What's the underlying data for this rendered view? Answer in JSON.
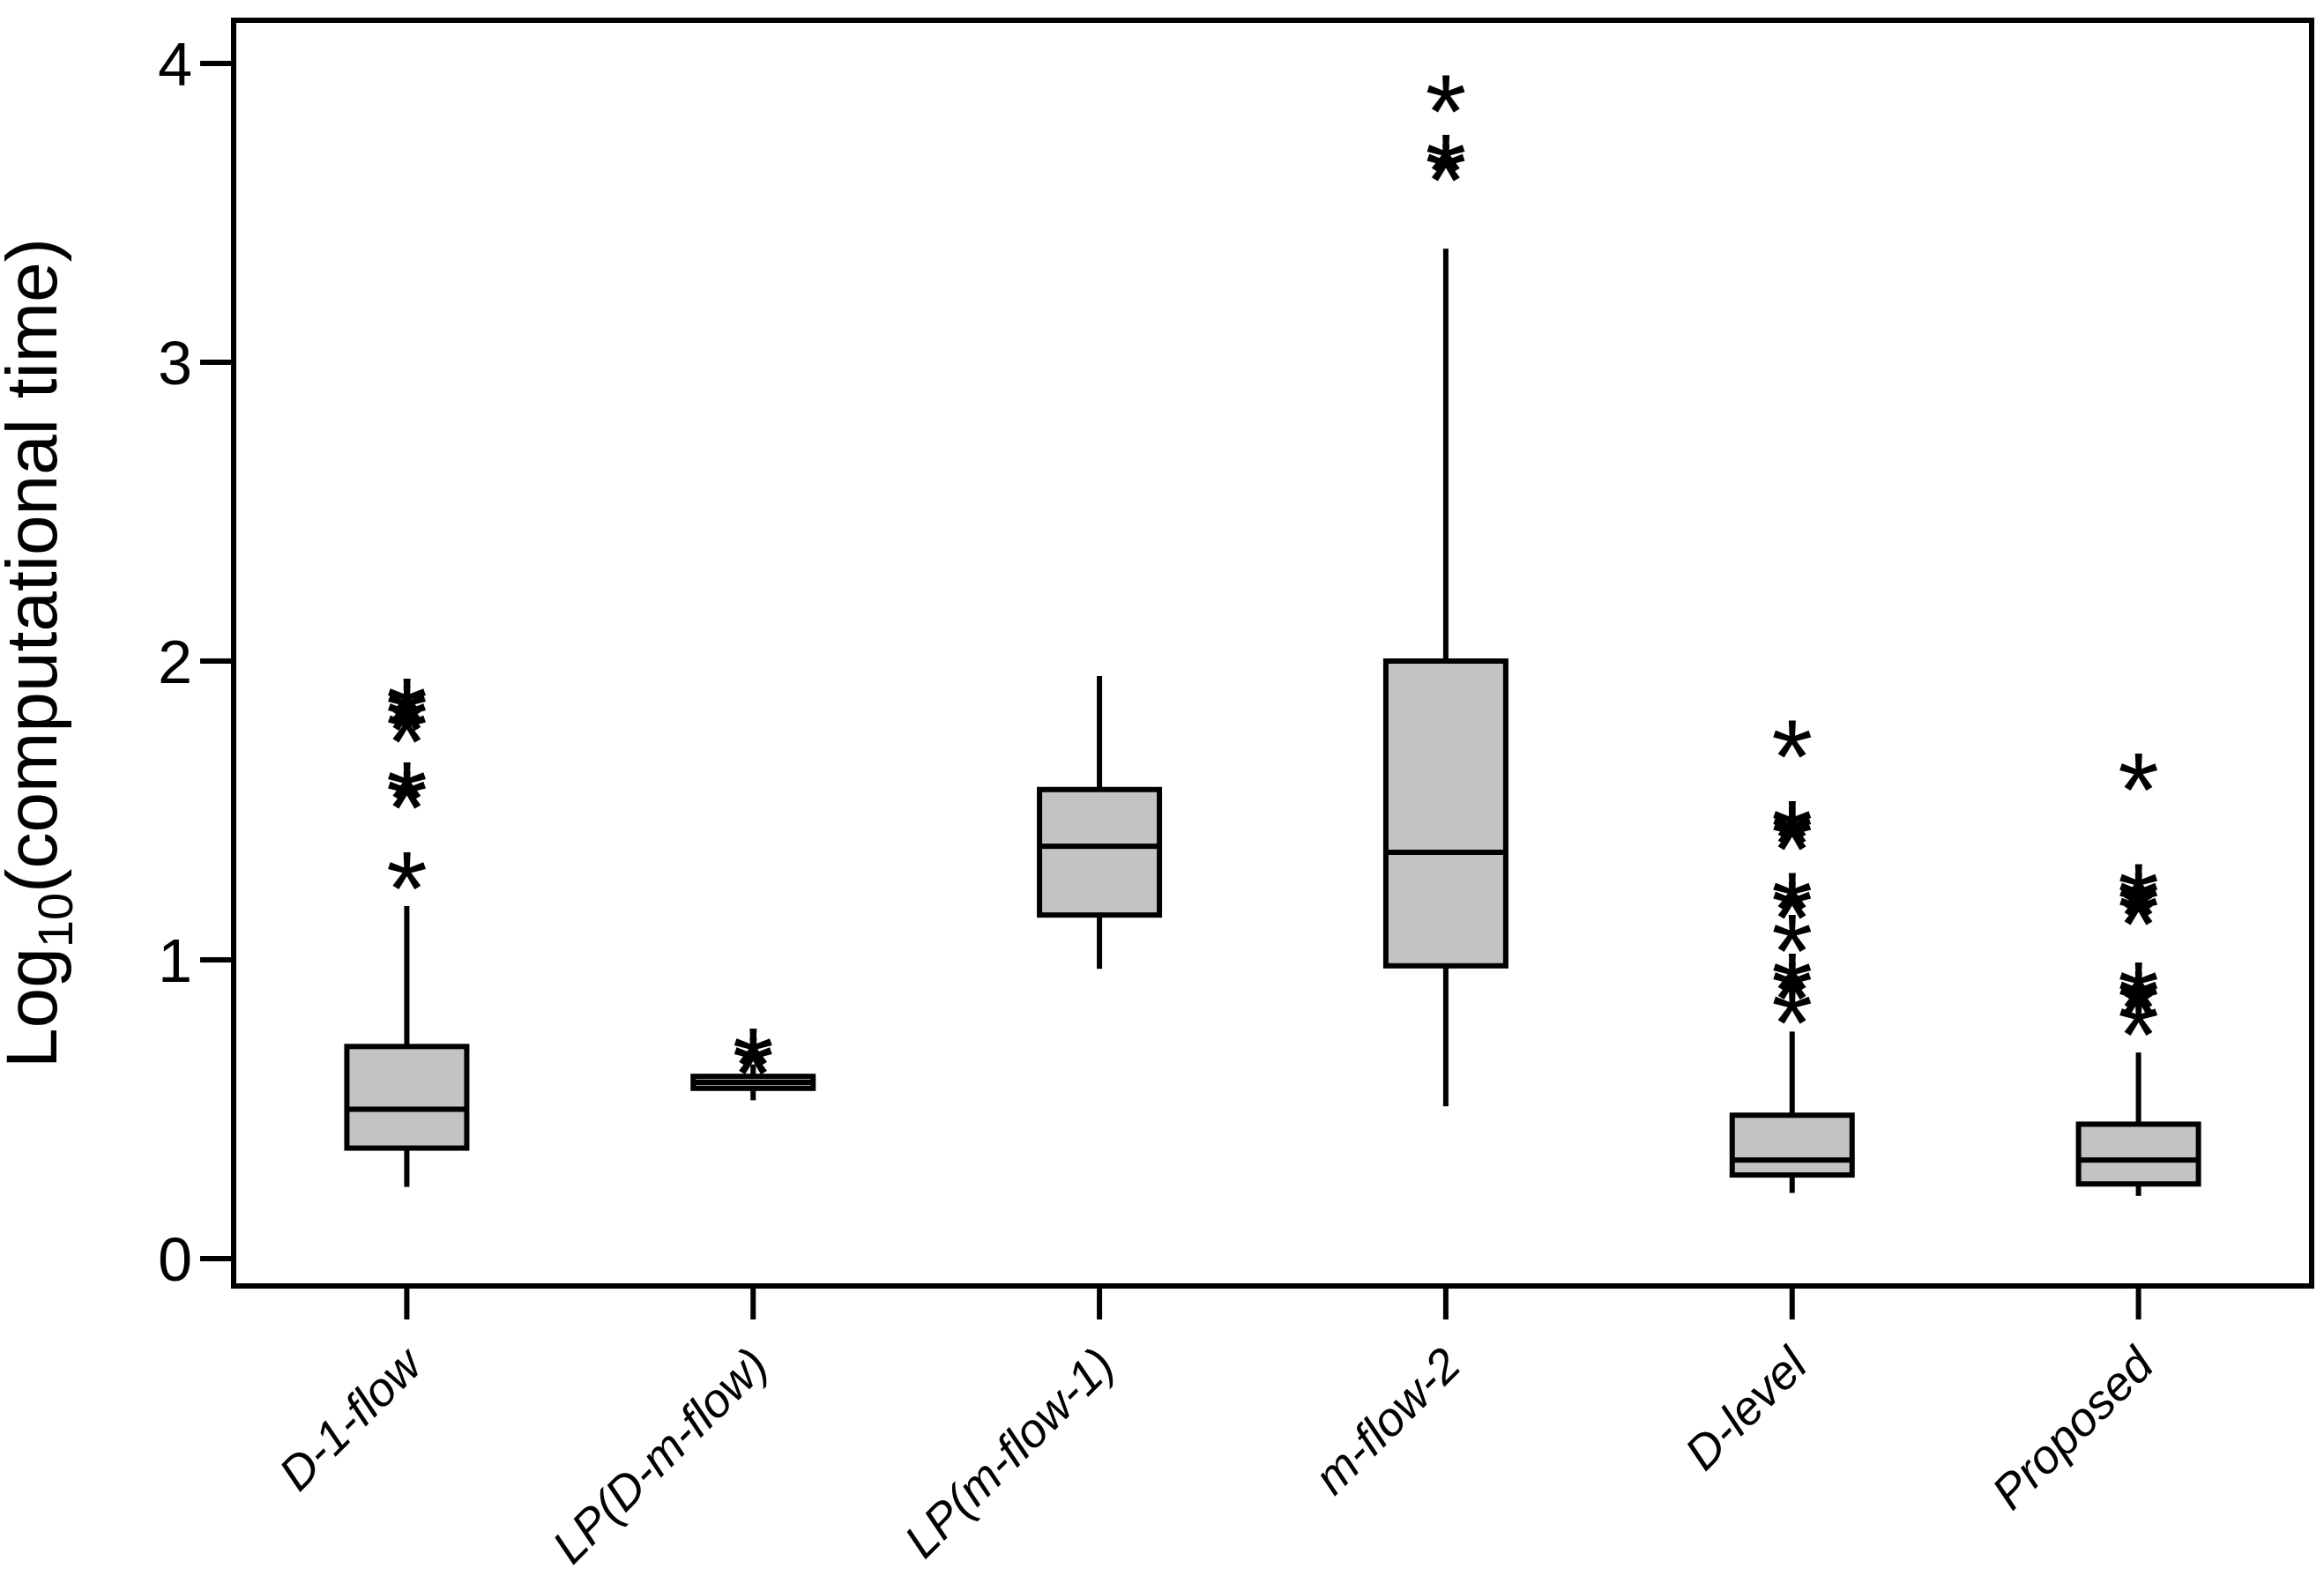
{
  "chart_data": {
    "type": "boxplot",
    "title": "",
    "xlabel": "",
    "ylabel": "Log10(computational time)",
    "ylabel_parts": {
      "prefix": "Log",
      "sub": "10",
      "suffix": "(computational time)"
    },
    "yticks": [
      "0",
      "1",
      "2",
      "3",
      "4"
    ],
    "ytick_values": [
      0,
      1,
      2,
      3,
      4
    ],
    "ylim": [
      -0.1,
      4.15
    ],
    "grid": false,
    "legend": "none",
    "background_color": "#ffffff",
    "box_fill_color": "#c3c3c3",
    "line_color": "#000000",
    "outlier_marker": "*",
    "categories": [
      "D-1-flow",
      "LP(D-m-flow)",
      "LP(m-flow-1)",
      "m-flow-2",
      "D-level",
      "Proposed"
    ],
    "series": [
      {
        "name": "D-1-flow",
        "whisker_low": 0.24,
        "q1": 0.37,
        "median": 0.5,
        "q3": 0.71,
        "whisker_high": 1.18,
        "outliers": [
          1.3,
          1.57,
          1.6,
          1.79,
          1.83,
          1.86,
          1.88
        ]
      },
      {
        "name": "LP(D-m-flow)",
        "whisker_low": 0.53,
        "q1": 0.57,
        "median": 0.59,
        "q3": 0.61,
        "whisker_high": 0.65,
        "outliers": [
          0.68,
          0.71
        ]
      },
      {
        "name": "LP(m-flow-1)",
        "whisker_low": 0.97,
        "q1": 1.15,
        "median": 1.38,
        "q3": 1.57,
        "whisker_high": 1.95,
        "outliers": []
      },
      {
        "name": "m-flow-2",
        "whisker_low": 0.51,
        "q1": 0.98,
        "median": 1.36,
        "q3": 2.0,
        "whisker_high": 3.38,
        "outliers": [
          3.67,
          3.7,
          3.9
        ]
      },
      {
        "name": "D-level",
        "whisker_low": 0.22,
        "q1": 0.28,
        "median": 0.33,
        "q3": 0.48,
        "whisker_high": 0.76,
        "outliers": [
          0.85,
          0.93,
          0.96,
          1.09,
          1.2,
          1.23,
          1.43,
          1.45,
          1.47,
          1.74
        ]
      },
      {
        "name": "Proposed",
        "whisker_low": 0.21,
        "q1": 0.25,
        "median": 0.33,
        "q3": 0.45,
        "whisker_high": 0.69,
        "outliers": [
          0.81,
          0.88,
          0.9,
          0.93,
          1.18,
          1.21,
          1.23,
          1.26,
          1.63
        ]
      }
    ]
  }
}
